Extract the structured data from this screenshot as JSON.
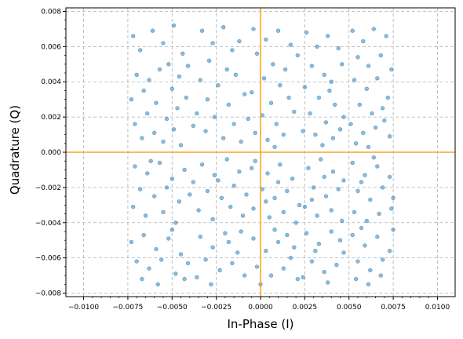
{
  "chart_data": {
    "type": "scatter",
    "title": "",
    "xlabel": "In-Phase (I)",
    "ylabel": "Quadrature (Q)",
    "xlim": [
      -0.011,
      0.011
    ],
    "ylim": [
      -0.0082,
      0.0082
    ],
    "x_ticks": [
      -0.01,
      -0.0075,
      -0.005,
      -0.0025,
      0.0,
      0.0025,
      0.005,
      0.0075,
      0.01
    ],
    "x_tick_labels": [
      "−0.0100",
      "−0.0075",
      "−0.0050",
      "−0.0025",
      "0.0000",
      "0.0025",
      "0.0050",
      "0.0075",
      "0.0100"
    ],
    "y_ticks": [
      -0.008,
      -0.006,
      -0.004,
      -0.002,
      0.0,
      0.002,
      0.004,
      0.006,
      0.008
    ],
    "y_tick_labels": [
      "−0.008",
      "−0.006",
      "−0.004",
      "−0.002",
      "0.000",
      "0.002",
      "0.004",
      "0.006",
      "0.008"
    ],
    "grid": true,
    "reference_lines": {
      "x": 0.0,
      "y": 0.0,
      "color": "#f5a623"
    },
    "marker_color": "#1f77b4",
    "series": [
      {
        "points": [
          [
            -0.0072,
            0.0066
          ],
          [
            -0.0068,
            0.0058
          ],
          [
            -0.0061,
            0.0069
          ],
          [
            -0.0055,
            0.0062
          ],
          [
            -0.0049,
            0.0072
          ],
          [
            -0.0044,
            0.0056
          ],
          [
            -0.0052,
            0.005
          ],
          [
            -0.007,
            0.0044
          ],
          [
            -0.0063,
            0.0041
          ],
          [
            -0.0057,
            0.0047
          ],
          [
            -0.0046,
            0.0043
          ],
          [
            -0.0041,
            0.0049
          ],
          [
            -0.0066,
            0.0035
          ],
          [
            -0.005,
            0.0036
          ],
          [
            -0.0073,
            0.003
          ],
          [
            -0.0059,
            0.0028
          ],
          [
            -0.0047,
            0.0025
          ],
          [
            -0.0064,
            0.0022
          ],
          [
            -0.0053,
            0.0019
          ],
          [
            -0.0042,
            0.0031
          ],
          [
            -0.0071,
            0.0016
          ],
          [
            -0.006,
            0.0011
          ],
          [
            -0.0049,
            0.0013
          ],
          [
            -0.0055,
            0.0006
          ],
          [
            -0.0045,
            0.0004
          ],
          [
            -0.0067,
            0.0008
          ],
          [
            -0.0038,
            0.0015
          ],
          [
            -0.0033,
            0.0069
          ],
          [
            -0.0027,
            0.0062
          ],
          [
            -0.0021,
            0.0071
          ],
          [
            -0.0016,
            0.0058
          ],
          [
            -0.0029,
            0.0052
          ],
          [
            -0.0019,
            0.0047
          ],
          [
            -0.0012,
            0.0063
          ],
          [
            -0.0034,
            0.0041
          ],
          [
            -0.0024,
            0.0038
          ],
          [
            -0.0014,
            0.0044
          ],
          [
            -0.003,
            0.003
          ],
          [
            -0.0018,
            0.0027
          ],
          [
            -0.0009,
            0.0033
          ],
          [
            -0.0026,
            0.002
          ],
          [
            -0.0015,
            0.0016
          ],
          [
            -0.0031,
            0.0012
          ],
          [
            -0.0021,
            0.0008
          ],
          [
            -0.0011,
            0.0006
          ],
          [
            -0.0036,
            0.0022
          ],
          [
            -0.0007,
            0.0019
          ],
          [
            -0.0004,
            0.007
          ],
          [
            0.0003,
            0.0064
          ],
          [
            0.001,
            0.0069
          ],
          [
            0.0017,
            0.0061
          ],
          [
            -0.0002,
            0.0056
          ],
          [
            0.0007,
            0.005
          ],
          [
            0.0014,
            0.0047
          ],
          [
            0.0021,
            0.0055
          ],
          [
            0.0002,
            0.0042
          ],
          [
            0.0011,
            0.0038
          ],
          [
            -0.0005,
            0.0034
          ],
          [
            0.0006,
            0.0028
          ],
          [
            0.0016,
            0.0031
          ],
          [
            0.0001,
            0.0021
          ],
          [
            0.0009,
            0.0016
          ],
          [
            -0.0003,
            0.0011
          ],
          [
            0.0004,
            0.0007
          ],
          [
            0.0013,
            0.001
          ],
          [
            0.0019,
            0.0023
          ],
          [
            0.0008,
            0.0003
          ],
          [
            0.0026,
            0.0068
          ],
          [
            0.0032,
            0.006
          ],
          [
            0.0038,
            0.0066
          ],
          [
            0.0044,
            0.0059
          ],
          [
            0.0029,
            0.0049
          ],
          [
            0.0036,
            0.0044
          ],
          [
            0.004,
            0.004
          ],
          [
            0.0046,
            0.005
          ],
          [
            0.0025,
            0.0037
          ],
          [
            0.0033,
            0.0031
          ],
          [
            0.0042,
            0.0027
          ],
          [
            0.0028,
            0.0022
          ],
          [
            0.0037,
            0.0017
          ],
          [
            0.0047,
            0.002
          ],
          [
            0.0031,
            0.001
          ],
          [
            0.0041,
            0.0008
          ],
          [
            0.0024,
            0.0012
          ],
          [
            0.0035,
            0.0004
          ],
          [
            0.0045,
            0.0013
          ],
          [
            0.0039,
            0.0035
          ],
          [
            0.0052,
            0.0069
          ],
          [
            0.0058,
            0.0063
          ],
          [
            0.0064,
            0.007
          ],
          [
            0.0071,
            0.0066
          ],
          [
            0.0055,
            0.0054
          ],
          [
            0.0061,
            0.0049
          ],
          [
            0.0068,
            0.0055
          ],
          [
            0.0074,
            0.0047
          ],
          [
            0.0053,
            0.0041
          ],
          [
            0.006,
            0.0036
          ],
          [
            0.0066,
            0.0042
          ],
          [
            0.0072,
            0.0031
          ],
          [
            0.0056,
            0.0027
          ],
          [
            0.0063,
            0.0022
          ],
          [
            0.0069,
            0.0025
          ],
          [
            0.0051,
            0.0016
          ],
          [
            0.0058,
            0.0011
          ],
          [
            0.0065,
            0.0014
          ],
          [
            0.0073,
            0.0009
          ],
          [
            0.0054,
            0.0005
          ],
          [
            0.0061,
            0.0003
          ],
          [
            0.007,
            0.0018
          ],
          [
            -0.0071,
            -0.0008
          ],
          [
            -0.0064,
            -0.0012
          ],
          [
            -0.0057,
            -0.0006
          ],
          [
            -0.005,
            -0.0015
          ],
          [
            -0.0043,
            -0.001
          ],
          [
            -0.0068,
            -0.0021
          ],
          [
            -0.006,
            -0.0025
          ],
          [
            -0.0053,
            -0.002
          ],
          [
            -0.0046,
            -0.0028
          ],
          [
            -0.0072,
            -0.0031
          ],
          [
            -0.0065,
            -0.0036
          ],
          [
            -0.0055,
            -0.0034
          ],
          [
            -0.0048,
            -0.004
          ],
          [
            -0.004,
            -0.0024
          ],
          [
            -0.0062,
            -0.0005
          ],
          [
            -0.0038,
            -0.0017
          ],
          [
            -0.0033,
            -0.0007
          ],
          [
            -0.0026,
            -0.0013
          ],
          [
            -0.0019,
            -0.0004
          ],
          [
            -0.0012,
            -0.0011
          ],
          [
            -0.003,
            -0.0022
          ],
          [
            -0.0022,
            -0.0026
          ],
          [
            -0.0015,
            -0.0019
          ],
          [
            -0.0008,
            -0.0024
          ],
          [
            -0.0035,
            -0.0033
          ],
          [
            -0.0027,
            -0.0038
          ],
          [
            -0.0017,
            -0.0031
          ],
          [
            -0.001,
            -0.0036
          ],
          [
            -0.0024,
            -0.0016
          ],
          [
            -0.0005,
            -0.0009
          ],
          [
            -0.0003,
            -0.0005
          ],
          [
            0.0004,
            -0.0012
          ],
          [
            0.0011,
            -0.0007
          ],
          [
            0.0018,
            -0.0015
          ],
          [
            0.0001,
            -0.0021
          ],
          [
            0.0008,
            -0.0026
          ],
          [
            0.0015,
            -0.0022
          ],
          [
            0.0022,
            -0.003
          ],
          [
            -0.0004,
            -0.0032
          ],
          [
            0.0005,
            -0.0037
          ],
          [
            0.0013,
            -0.0034
          ],
          [
            0.002,
            -0.004
          ],
          [
            0.001,
            -0.0017
          ],
          [
            0.0003,
            -0.0028
          ],
          [
            0.0027,
            -0.0009
          ],
          [
            0.0034,
            -0.0004
          ],
          [
            0.0041,
            -0.0011
          ],
          [
            0.0047,
            -0.0016
          ],
          [
            0.003,
            -0.002
          ],
          [
            0.0037,
            -0.0025
          ],
          [
            0.0044,
            -0.0021
          ],
          [
            0.0025,
            -0.0031
          ],
          [
            0.0032,
            -0.0036
          ],
          [
            0.004,
            -0.0033
          ],
          [
            0.0046,
            -0.0039
          ],
          [
            0.0036,
            -0.0014
          ],
          [
            0.0029,
            -0.0027
          ],
          [
            0.0052,
            -0.0006
          ],
          [
            0.0059,
            -0.0013
          ],
          [
            0.0066,
            -0.0008
          ],
          [
            0.0073,
            -0.0014
          ],
          [
            0.0055,
            -0.0022
          ],
          [
            0.0062,
            -0.0027
          ],
          [
            0.0069,
            -0.002
          ],
          [
            0.0075,
            -0.0026
          ],
          [
            0.0053,
            -0.0034
          ],
          [
            0.006,
            -0.0039
          ],
          [
            0.0067,
            -0.0035
          ],
          [
            0.0074,
            -0.0032
          ],
          [
            0.0057,
            -0.0017
          ],
          [
            0.0064,
            -0.0003
          ],
          [
            -0.0073,
            -0.0051
          ],
          [
            -0.0066,
            -0.0047
          ],
          [
            -0.0059,
            -0.0055
          ],
          [
            -0.0052,
            -0.0049
          ],
          [
            -0.0045,
            -0.0058
          ],
          [
            -0.007,
            -0.0062
          ],
          [
            -0.0063,
            -0.0066
          ],
          [
            -0.0056,
            -0.0061
          ],
          [
            -0.0048,
            -0.0069
          ],
          [
            -0.0041,
            -0.0063
          ],
          [
            -0.0067,
            -0.0072
          ],
          [
            -0.0058,
            -0.0075
          ],
          [
            -0.005,
            -0.0044
          ],
          [
            -0.0043,
            -0.0072
          ],
          [
            -0.0034,
            -0.0048
          ],
          [
            -0.0027,
            -0.0054
          ],
          [
            -0.002,
            -0.0046
          ],
          [
            -0.0013,
            -0.0057
          ],
          [
            -0.0031,
            -0.0061
          ],
          [
            -0.0023,
            -0.0067
          ],
          [
            -0.0016,
            -0.0063
          ],
          [
            -0.0009,
            -0.007
          ],
          [
            -0.0036,
            -0.0071
          ],
          [
            -0.0028,
            -0.0075
          ],
          [
            -0.0018,
            -0.0051
          ],
          [
            -0.0011,
            -0.0045
          ],
          [
            -0.0004,
            -0.0049
          ],
          [
            0.0003,
            -0.0056
          ],
          [
            0.001,
            -0.0051
          ],
          [
            0.0017,
            -0.006
          ],
          [
            -0.0002,
            -0.0065
          ],
          [
            0.0006,
            -0.007
          ],
          [
            0.0013,
            -0.0066
          ],
          [
            0.0021,
            -0.0072
          ],
          [
            0.0,
            -0.0075
          ],
          [
            0.0008,
            -0.0044
          ],
          [
            0.0015,
            -0.0047
          ],
          [
            0.0019,
            -0.0054
          ],
          [
            0.0026,
            -0.0046
          ],
          [
            0.0033,
            -0.0052
          ],
          [
            0.004,
            -0.0045
          ],
          [
            0.0047,
            -0.0057
          ],
          [
            0.0029,
            -0.0062
          ],
          [
            0.0036,
            -0.0068
          ],
          [
            0.0043,
            -0.0064
          ],
          [
            0.0024,
            -0.0071
          ],
          [
            0.0038,
            -0.0074
          ],
          [
            0.0045,
            -0.005
          ],
          [
            0.0031,
            -0.0056
          ],
          [
            0.0052,
            -0.0047
          ],
          [
            0.0059,
            -0.0053
          ],
          [
            0.0066,
            -0.0048
          ],
          [
            0.0073,
            -0.0056
          ],
          [
            0.0055,
            -0.0062
          ],
          [
            0.0062,
            -0.0067
          ],
          [
            0.0069,
            -0.0061
          ],
          [
            0.0054,
            -0.0072
          ],
          [
            0.0061,
            -0.0075
          ],
          [
            0.0068,
            -0.007
          ],
          [
            0.0057,
            -0.0043
          ],
          [
            0.0075,
            -0.0044
          ]
        ]
      }
    ]
  }
}
